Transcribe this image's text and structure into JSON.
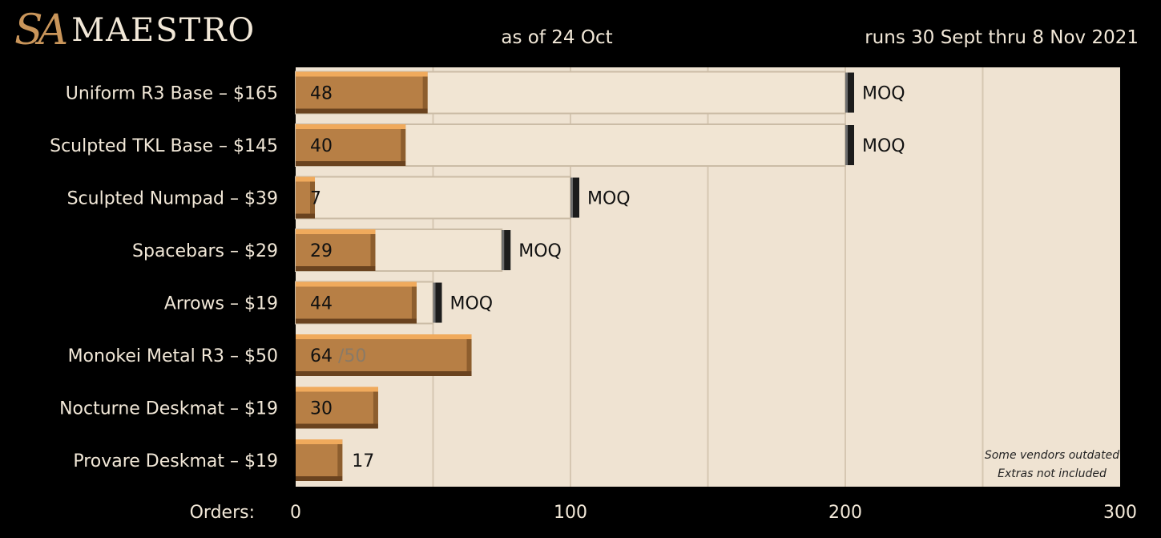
{
  "header": {
    "logo_mark": "SA",
    "logo_text": "MAESTRO",
    "as_of": "as of 24 Oct",
    "runs": "runs 30 Sept thru 8 Nov 2021"
  },
  "chart_data": {
    "type": "bar",
    "orientation": "horizontal",
    "xlabel": "Orders:",
    "xlim": [
      0,
      300
    ],
    "xticks": [
      0,
      100,
      200,
      300
    ],
    "gridlines": [
      50,
      100,
      150,
      200,
      250
    ],
    "moq_label": "MOQ",
    "categories": [
      "Uniform R3 Base – $165",
      "Sculpted TKL Base – $145",
      "Sculpted Numpad – $39",
      "Spacebars – $29",
      "Arrows – $19",
      "Monokei Metal R3 – $50",
      "Nocturne Deskmat – $19",
      "Provare Deskmat – $19"
    ],
    "values": [
      48,
      40,
      7,
      29,
      44,
      64,
      30,
      17
    ],
    "moq": [
      200,
      200,
      100,
      75,
      50,
      null,
      null,
      null
    ],
    "limits": [
      null,
      null,
      null,
      null,
      null,
      50,
      null,
      null
    ],
    "notes": [
      "Some vendors outdated",
      "Extras not included"
    ],
    "colors": {
      "plot_bg": "#efe3d2",
      "bar_face": "#b77f45",
      "bar_top": "#f0aa5c",
      "bar_bottom": "#6a431f",
      "moq_marker": "#1c1c1c"
    }
  }
}
